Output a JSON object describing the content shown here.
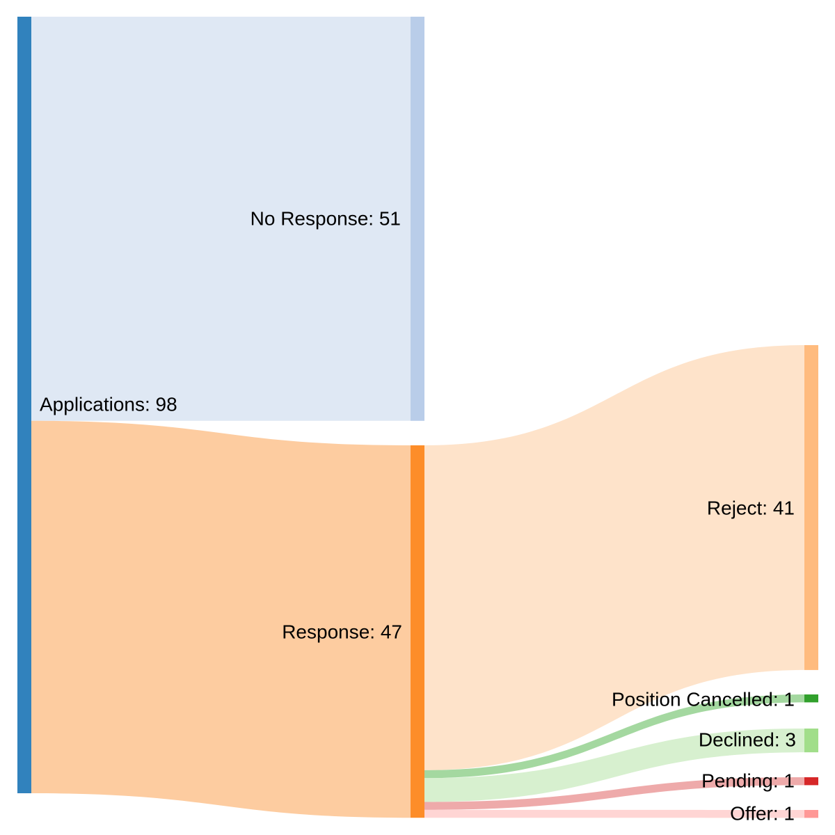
{
  "chart_data": {
    "type": "sankey",
    "nodes": [
      {
        "id": "applications",
        "name": "Applications",
        "value": 98,
        "label": "Applications: 98",
        "color": "#3182bd"
      },
      {
        "id": "no_response",
        "name": "No Response",
        "value": 51,
        "label": "No Response: 51",
        "color": "#b9cde9"
      },
      {
        "id": "response",
        "name": "Response",
        "value": 47,
        "label": "Response: 47",
        "color": "#fd8d29"
      },
      {
        "id": "reject",
        "name": "Reject",
        "value": 41,
        "label": "Reject: 41",
        "color": "#ffbb7e"
      },
      {
        "id": "position_cancelled",
        "name": "Position Cancelled",
        "value": 1,
        "label": "Position Cancelled: 1",
        "color": "#31a02c"
      },
      {
        "id": "declined",
        "name": "Declined",
        "value": 3,
        "label": "Declined: 3",
        "color": "#a1de8a"
      },
      {
        "id": "pending",
        "name": "Pending",
        "value": 1,
        "label": "Pending: 1",
        "color": "#d62728"
      },
      {
        "id": "offer",
        "name": "Offer",
        "value": 1,
        "label": "Offer: 1",
        "color": "#ff9896"
      }
    ],
    "links": [
      {
        "source": "applications",
        "target": "no_response",
        "value": 51,
        "color": "#dfe8f4"
      },
      {
        "source": "applications",
        "target": "response",
        "value": 47,
        "color": "#fdcca0"
      },
      {
        "source": "response",
        "target": "reject",
        "value": 41,
        "color": "#fee3ca"
      },
      {
        "source": "response",
        "target": "position_cancelled",
        "value": 1,
        "color": "#a4d8a0"
      },
      {
        "source": "response",
        "target": "declined",
        "value": 3,
        "color": "#d7f0cf"
      },
      {
        "source": "response",
        "target": "pending",
        "value": 1,
        "color": "#eeaaaa"
      },
      {
        "source": "response",
        "target": "offer",
        "value": 1,
        "color": "#ffd5d4"
      }
    ]
  }
}
